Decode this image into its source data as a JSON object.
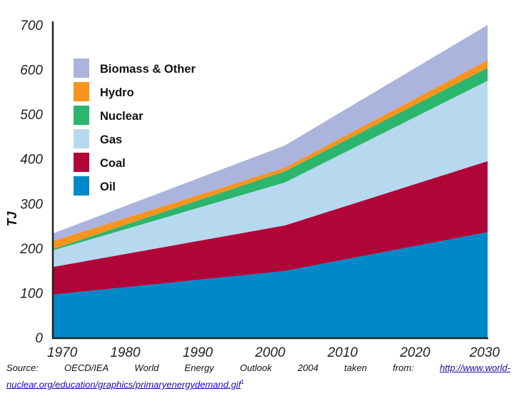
{
  "chart_data": {
    "type": "area",
    "stacked": true,
    "title": "",
    "xlabel": "",
    "ylabel": "TJ",
    "x": [
      1970,
      2002,
      2030
    ],
    "xticks": [
      "1970",
      "1980",
      "1990",
      "2000",
      "2010",
      "2020",
      "2030"
    ],
    "xlim": [
      1970,
      2030
    ],
    "yticks": [
      "0",
      "100",
      "200",
      "300",
      "400",
      "500",
      "600",
      "700"
    ],
    "ylim": [
      0,
      700
    ],
    "grid": false,
    "legend_position": "top-left",
    "series": [
      {
        "name": "Oil",
        "color": "#0088c8",
        "values": [
          96,
          149,
          236
        ]
      },
      {
        "name": "Coal",
        "color": "#b10439",
        "values": [
          62,
          102,
          159
        ]
      },
      {
        "name": "Gas",
        "color": "#b7d9f0",
        "values": [
          37,
          96,
          180
        ]
      },
      {
        "name": "Nuclear",
        "color": "#2bb56e",
        "values": [
          3,
          25,
          29
        ]
      },
      {
        "name": "Hydro",
        "color": "#f7941d",
        "values": [
          18,
          8,
          17
        ]
      },
      {
        "name": "Biomass & Other",
        "color": "#abb4dc",
        "values": [
          17,
          50,
          79
        ]
      }
    ],
    "legend_order": [
      "Biomass & Other",
      "Hydro",
      "Nuclear",
      "Gas",
      "Coal",
      "Oil"
    ]
  },
  "source": {
    "prefix_words": [
      "Source:",
      "OECD/IEA",
      "World",
      "Energy",
      "Outlook",
      "2004",
      "taken",
      "from:"
    ],
    "link_part1": "http://www.world-",
    "link_part2": "nuclear.org/education/graphics/primaryenergydemand.gif",
    "footnote": "1"
  }
}
